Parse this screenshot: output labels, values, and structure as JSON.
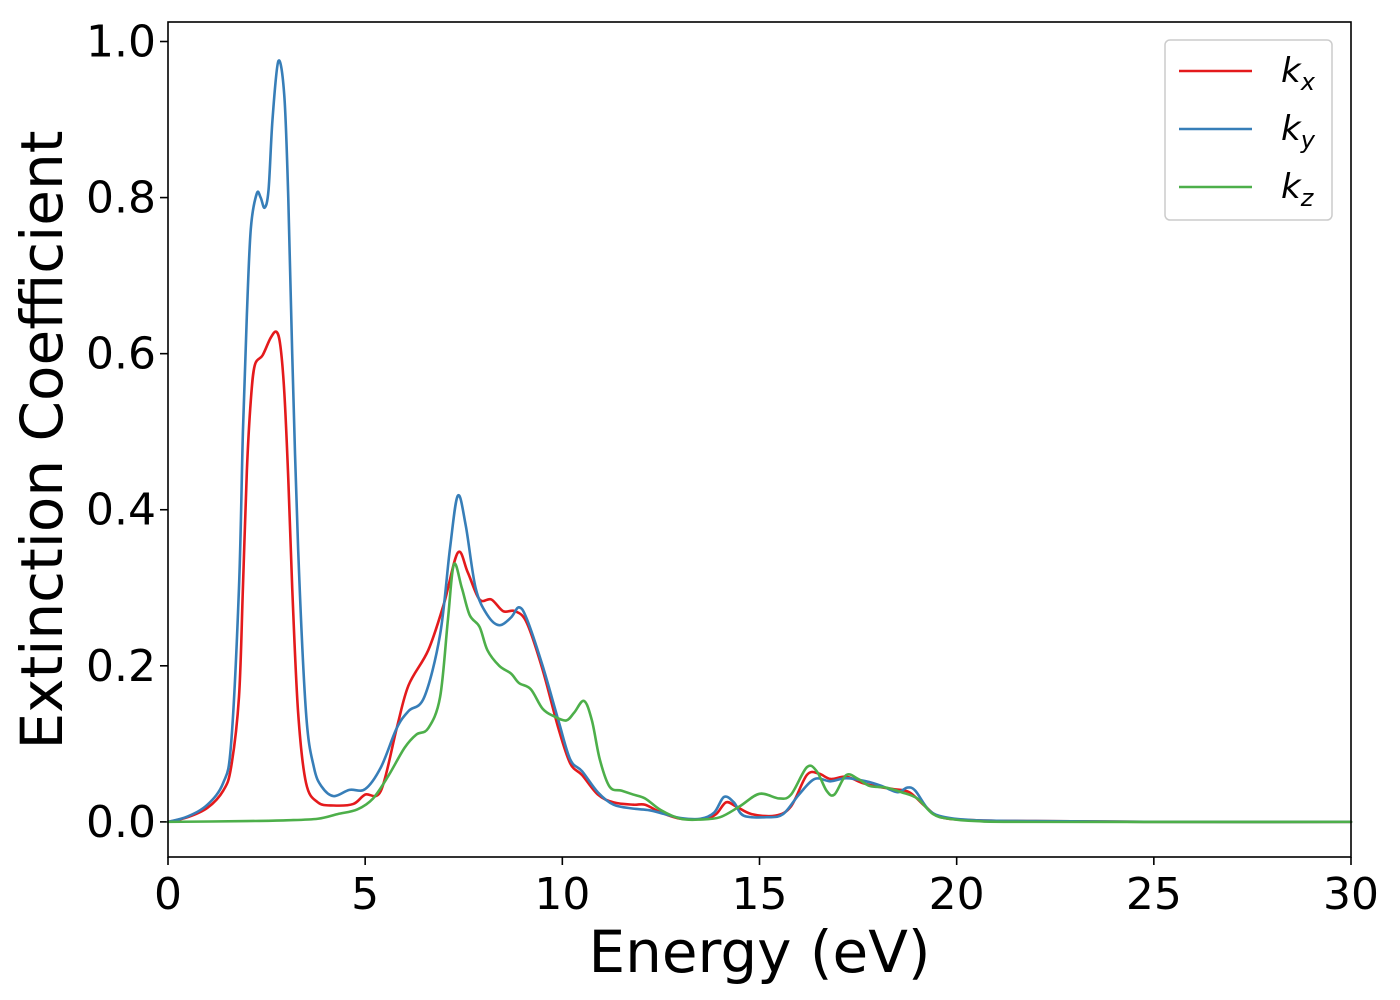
{
  "chart_data": {
    "type": "line",
    "title": "",
    "xlabel": "Energy (eV)",
    "ylabel": "Extinction Coefficient",
    "xlim": [
      0,
      30
    ],
    "ylim": [
      -0.045,
      1.025
    ],
    "xticks": [
      0,
      5,
      10,
      15,
      20,
      25,
      30
    ],
    "xtick_labels": [
      "0",
      "5",
      "10",
      "15",
      "20",
      "25",
      "30"
    ],
    "yticks": [
      0.0,
      0.2,
      0.4,
      0.6,
      0.8,
      1.0
    ],
    "ytick_labels": [
      "0.0",
      "0.2",
      "0.4",
      "0.6",
      "0.8",
      "1.0"
    ],
    "grid": false,
    "legend_position": "top-right",
    "series": [
      {
        "name": "kx",
        "label_main": "k",
        "label_sub": "x",
        "color": "#e41a1c",
        "points": [
          [
            0,
            0
          ],
          [
            0.5,
            0.006
          ],
          [
            1,
            0.018
          ],
          [
            1.4,
            0.04
          ],
          [
            1.6,
            0.07
          ],
          [
            1.8,
            0.16
          ],
          [
            1.9,
            0.3
          ],
          [
            2.0,
            0.45
          ],
          [
            2.1,
            0.54
          ],
          [
            2.2,
            0.585
          ],
          [
            2.4,
            0.598
          ],
          [
            2.6,
            0.62
          ],
          [
            2.75,
            0.628
          ],
          [
            2.85,
            0.61
          ],
          [
            2.95,
            0.55
          ],
          [
            3.05,
            0.44
          ],
          [
            3.15,
            0.3
          ],
          [
            3.3,
            0.14
          ],
          [
            3.5,
            0.05
          ],
          [
            3.8,
            0.025
          ],
          [
            4.2,
            0.021
          ],
          [
            4.7,
            0.023
          ],
          [
            5.0,
            0.035
          ],
          [
            5.4,
            0.04
          ],
          [
            5.8,
            0.12
          ],
          [
            6.1,
            0.175
          ],
          [
            6.6,
            0.22
          ],
          [
            7.0,
            0.28
          ],
          [
            7.35,
            0.345
          ],
          [
            7.6,
            0.32
          ],
          [
            7.9,
            0.285
          ],
          [
            8.2,
            0.285
          ],
          [
            8.5,
            0.27
          ],
          [
            8.8,
            0.27
          ],
          [
            9.1,
            0.255
          ],
          [
            9.5,
            0.195
          ],
          [
            9.9,
            0.12
          ],
          [
            10.2,
            0.075
          ],
          [
            10.5,
            0.06
          ],
          [
            10.9,
            0.035
          ],
          [
            11.3,
            0.025
          ],
          [
            11.8,
            0.022
          ],
          [
            12.1,
            0.022
          ],
          [
            12.5,
            0.012
          ],
          [
            13.0,
            0.004
          ],
          [
            13.6,
            0.004
          ],
          [
            13.9,
            0.01
          ],
          [
            14.15,
            0.025
          ],
          [
            14.4,
            0.02
          ],
          [
            14.8,
            0.01
          ],
          [
            15.4,
            0.008
          ],
          [
            15.8,
            0.02
          ],
          [
            16.2,
            0.06
          ],
          [
            16.5,
            0.062
          ],
          [
            16.8,
            0.055
          ],
          [
            17.2,
            0.058
          ],
          [
            17.6,
            0.05
          ],
          [
            18.0,
            0.045
          ],
          [
            18.4,
            0.042
          ],
          [
            18.8,
            0.038
          ],
          [
            19.2,
            0.02
          ],
          [
            19.6,
            0.006
          ],
          [
            20.5,
            0.002
          ],
          [
            22,
            0.001
          ],
          [
            25,
            0.0
          ],
          [
            30,
            0.0
          ]
        ]
      },
      {
        "name": "ky",
        "label_main": "k",
        "label_sub": "y",
        "color": "#377eb8",
        "points": [
          [
            0,
            0
          ],
          [
            0.5,
            0.007
          ],
          [
            1,
            0.022
          ],
          [
            1.4,
            0.05
          ],
          [
            1.6,
            0.1
          ],
          [
            1.8,
            0.3
          ],
          [
            1.9,
            0.5
          ],
          [
            2.0,
            0.65
          ],
          [
            2.1,
            0.76
          ],
          [
            2.25,
            0.805
          ],
          [
            2.35,
            0.8
          ],
          [
            2.45,
            0.787
          ],
          [
            2.55,
            0.81
          ],
          [
            2.65,
            0.9
          ],
          [
            2.8,
            0.975
          ],
          [
            2.95,
            0.93
          ],
          [
            3.05,
            0.8
          ],
          [
            3.15,
            0.6
          ],
          [
            3.3,
            0.35
          ],
          [
            3.5,
            0.14
          ],
          [
            3.7,
            0.07
          ],
          [
            3.9,
            0.045
          ],
          [
            4.2,
            0.033
          ],
          [
            4.6,
            0.041
          ],
          [
            5.0,
            0.042
          ],
          [
            5.4,
            0.07
          ],
          [
            5.8,
            0.12
          ],
          [
            6.1,
            0.142
          ],
          [
            6.5,
            0.16
          ],
          [
            6.9,
            0.24
          ],
          [
            7.15,
            0.35
          ],
          [
            7.35,
            0.418
          ],
          [
            7.55,
            0.38
          ],
          [
            7.8,
            0.3
          ],
          [
            8.1,
            0.265
          ],
          [
            8.4,
            0.252
          ],
          [
            8.7,
            0.262
          ],
          [
            8.9,
            0.275
          ],
          [
            9.1,
            0.26
          ],
          [
            9.5,
            0.2
          ],
          [
            9.9,
            0.13
          ],
          [
            10.2,
            0.08
          ],
          [
            10.5,
            0.065
          ],
          [
            10.9,
            0.038
          ],
          [
            11.3,
            0.022
          ],
          [
            11.8,
            0.017
          ],
          [
            12.2,
            0.015
          ],
          [
            12.6,
            0.01
          ],
          [
            13.0,
            0.005
          ],
          [
            13.5,
            0.004
          ],
          [
            13.85,
            0.012
          ],
          [
            14.1,
            0.032
          ],
          [
            14.35,
            0.025
          ],
          [
            14.6,
            0.008
          ],
          [
            15.2,
            0.006
          ],
          [
            15.6,
            0.01
          ],
          [
            16.0,
            0.035
          ],
          [
            16.4,
            0.055
          ],
          [
            16.8,
            0.052
          ],
          [
            17.2,
            0.056
          ],
          [
            17.7,
            0.052
          ],
          [
            18.1,
            0.046
          ],
          [
            18.5,
            0.038
          ],
          [
            18.75,
            0.044
          ],
          [
            18.95,
            0.04
          ],
          [
            19.3,
            0.015
          ],
          [
            19.7,
            0.006
          ],
          [
            20.5,
            0.002
          ],
          [
            22,
            0.001
          ],
          [
            25,
            0.0
          ],
          [
            30,
            0.0
          ]
        ]
      },
      {
        "name": "kz",
        "label_main": "k",
        "label_sub": "z",
        "color": "#4daf4a",
        "points": [
          [
            0,
            0
          ],
          [
            2,
            0.001
          ],
          [
            3,
            0.002
          ],
          [
            3.8,
            0.004
          ],
          [
            4.3,
            0.01
          ],
          [
            4.8,
            0.016
          ],
          [
            5.2,
            0.03
          ],
          [
            5.6,
            0.06
          ],
          [
            6.0,
            0.095
          ],
          [
            6.3,
            0.112
          ],
          [
            6.6,
            0.12
          ],
          [
            6.9,
            0.16
          ],
          [
            7.1,
            0.26
          ],
          [
            7.25,
            0.33
          ],
          [
            7.45,
            0.3
          ],
          [
            7.65,
            0.265
          ],
          [
            7.9,
            0.25
          ],
          [
            8.1,
            0.22
          ],
          [
            8.4,
            0.2
          ],
          [
            8.7,
            0.19
          ],
          [
            8.9,
            0.178
          ],
          [
            9.2,
            0.17
          ],
          [
            9.5,
            0.145
          ],
          [
            9.8,
            0.135
          ],
          [
            10.1,
            0.13
          ],
          [
            10.3,
            0.14
          ],
          [
            10.55,
            0.155
          ],
          [
            10.75,
            0.13
          ],
          [
            10.95,
            0.08
          ],
          [
            11.2,
            0.045
          ],
          [
            11.5,
            0.04
          ],
          [
            11.8,
            0.035
          ],
          [
            12.1,
            0.03
          ],
          [
            12.5,
            0.015
          ],
          [
            13.0,
            0.004
          ],
          [
            13.5,
            0.003
          ],
          [
            14.0,
            0.006
          ],
          [
            14.5,
            0.02
          ],
          [
            15.0,
            0.036
          ],
          [
            15.5,
            0.03
          ],
          [
            15.8,
            0.035
          ],
          [
            16.2,
            0.07
          ],
          [
            16.45,
            0.065
          ],
          [
            16.7,
            0.04
          ],
          [
            16.9,
            0.035
          ],
          [
            17.2,
            0.06
          ],
          [
            17.5,
            0.055
          ],
          [
            17.8,
            0.046
          ],
          [
            18.2,
            0.044
          ],
          [
            18.6,
            0.038
          ],
          [
            19.0,
            0.03
          ],
          [
            19.4,
            0.01
          ],
          [
            19.8,
            0.004
          ],
          [
            20.5,
            0.001
          ],
          [
            22,
            0.0
          ],
          [
            30,
            0.0
          ]
        ]
      }
    ]
  }
}
